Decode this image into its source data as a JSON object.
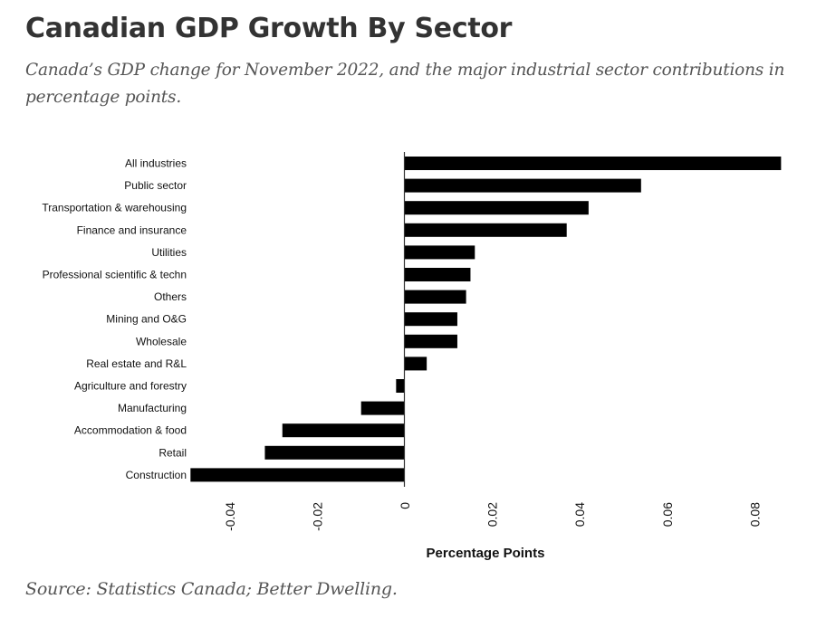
{
  "header": {
    "title": "Canadian GDP Growth By Sector",
    "subtitle": "Canada’s GDP change for November 2022, and the major industrial sector contributions in percentage points."
  },
  "footer": {
    "source": "Source: Statistics Canada; Better Dwelling."
  },
  "colors": {
    "bar": "#000000",
    "axis": "#333333",
    "title": "#333333",
    "subtitle": "#555555"
  },
  "chart_data": {
    "type": "bar",
    "orientation": "horizontal",
    "title": "Canadian GDP Growth By Sector",
    "xlabel": "Percentage Points",
    "ylabel": "",
    "xlim": [
      -0.05,
      0.088
    ],
    "xticks": [
      -0.04,
      -0.02,
      0,
      0.02,
      0.04,
      0.06,
      0.08
    ],
    "xtick_labels": [
      "-0.04",
      "-0.02",
      "0",
      "0.02",
      "0.04",
      "0.06",
      "0.08"
    ],
    "grid": false,
    "legend": "none",
    "categories": [
      "All industries",
      "Public sector",
      "Transportation & warehousing",
      "Finance and insurance",
      "Utilities",
      "Professional scientific & techn",
      "Others",
      "Mining and O&G",
      "Wholesale",
      "Real estate and R&L",
      "Agriculture and forestry",
      "Manufacturing",
      "Accommodation & food",
      "Retail",
      "Construction"
    ],
    "values": [
      0.086,
      0.054,
      0.042,
      0.037,
      0.016,
      0.015,
      0.014,
      0.012,
      0.012,
      0.005,
      -0.002,
      -0.01,
      -0.028,
      -0.032,
      -0.049
    ]
  }
}
